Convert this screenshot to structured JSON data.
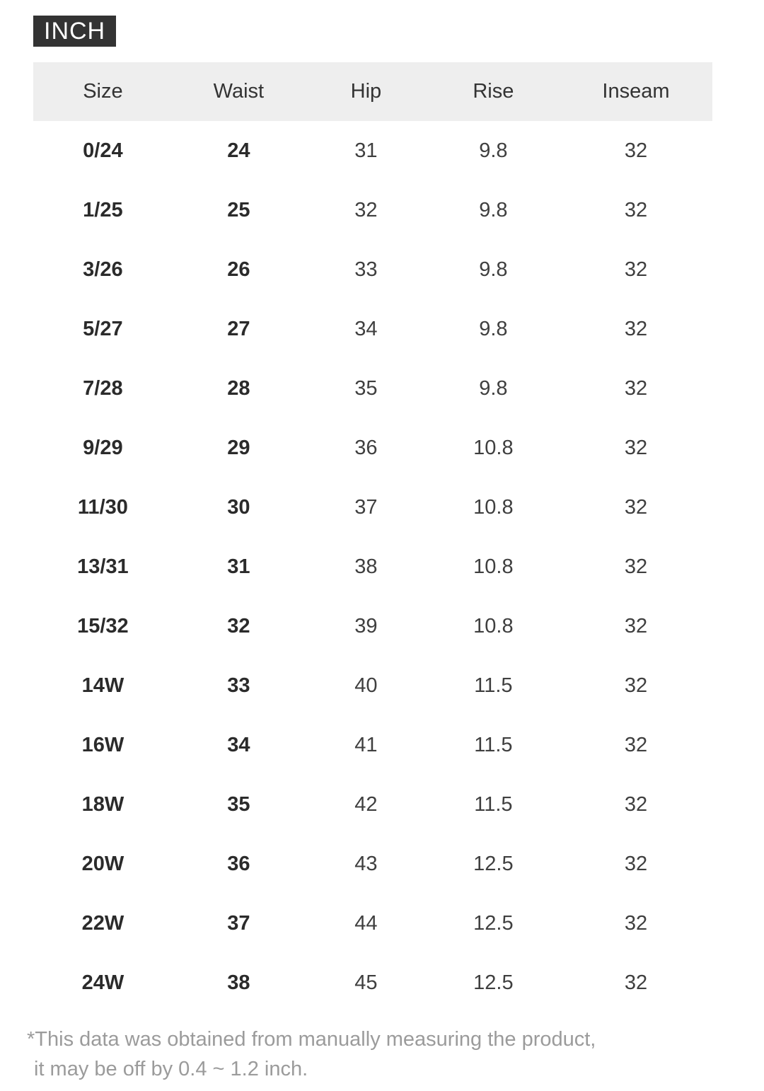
{
  "unit_badge": {
    "label": "INCH"
  },
  "table": {
    "headers": {
      "size": "Size",
      "waist": "Waist",
      "hip": "Hip",
      "rise": "Rise",
      "inseam": "Inseam"
    },
    "rows": [
      {
        "size": "0/24",
        "waist": "24",
        "hip": "31",
        "rise": "9.8",
        "inseam": "32"
      },
      {
        "size": "1/25",
        "waist": "25",
        "hip": "32",
        "rise": "9.8",
        "inseam": "32"
      },
      {
        "size": "3/26",
        "waist": "26",
        "hip": "33",
        "rise": "9.8",
        "inseam": "32"
      },
      {
        "size": "5/27",
        "waist": "27",
        "hip": "34",
        "rise": "9.8",
        "inseam": "32"
      },
      {
        "size": "7/28",
        "waist": "28",
        "hip": "35",
        "rise": "9.8",
        "inseam": "32"
      },
      {
        "size": "9/29",
        "waist": "29",
        "hip": "36",
        "rise": "10.8",
        "inseam": "32"
      },
      {
        "size": "11/30",
        "waist": "30",
        "hip": "37",
        "rise": "10.8",
        "inseam": "32"
      },
      {
        "size": "13/31",
        "waist": "31",
        "hip": "38",
        "rise": "10.8",
        "inseam": "32"
      },
      {
        "size": "15/32",
        "waist": "32",
        "hip": "39",
        "rise": "10.8",
        "inseam": "32"
      },
      {
        "size": "14W",
        "waist": "33",
        "hip": "40",
        "rise": "11.5",
        "inseam": "32"
      },
      {
        "size": "16W",
        "waist": "34",
        "hip": "41",
        "rise": "11.5",
        "inseam": "32"
      },
      {
        "size": "18W",
        "waist": "35",
        "hip": "42",
        "rise": "11.5",
        "inseam": "32"
      },
      {
        "size": "20W",
        "waist": "36",
        "hip": "43",
        "rise": "12.5",
        "inseam": "32"
      },
      {
        "size": "22W",
        "waist": "37",
        "hip": "44",
        "rise": "12.5",
        "inseam": "32"
      },
      {
        "size": "24W",
        "waist": "38",
        "hip": "45",
        "rise": "12.5",
        "inseam": "32"
      }
    ]
  },
  "footnote": {
    "line1": "*This data was obtained from manually measuring the product,",
    "line2": "it may be off by 0.4 ~ 1.2 inch."
  },
  "colors": {
    "badge_bg": "#333333",
    "badge_text": "#ffffff",
    "header_bg": "#eeeeee",
    "text_dark": "#2b2b2b",
    "text_regular": "#3f3f3f",
    "footnote_gray": "#9b9b9b"
  }
}
